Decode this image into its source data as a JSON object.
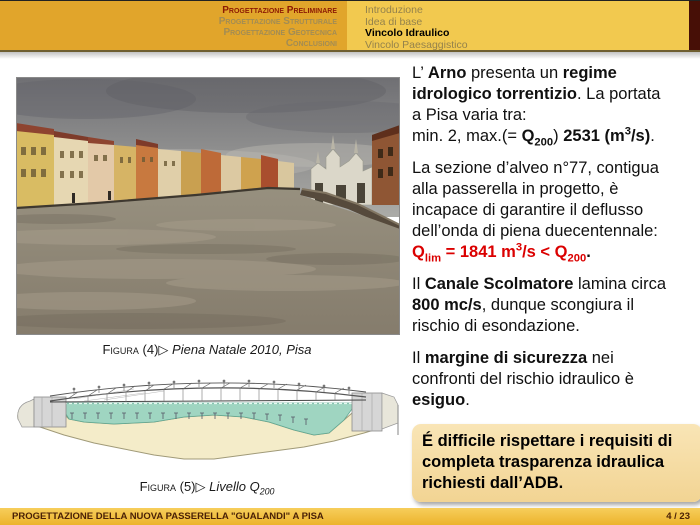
{
  "colors": {
    "red": "#DB0000",
    "gold_dark": "#E1A52B",
    "gold_light": "#F2C94F",
    "maroon_corner": "#470F06",
    "footer_text": "#4A2106",
    "water_teal": "#9FD5C1",
    "ground_beige": "#F4ECC9"
  },
  "header": {
    "sections": [
      {
        "label": "Progettazione Preliminare",
        "active": true
      },
      {
        "label": "Progettazione Strutturale",
        "active": false
      },
      {
        "label": "Progettazione Geotecnica",
        "active": false
      },
      {
        "label": "Conclusioni",
        "active": false
      }
    ],
    "subsections": [
      {
        "label": "Introduzione",
        "active": false
      },
      {
        "label": "Idea di base",
        "active": false
      },
      {
        "label": "Vincolo Idraulico",
        "active": true
      },
      {
        "label": "Vincolo Paesaggistico",
        "active": false
      }
    ]
  },
  "figures": {
    "f4": [
      {
        "t": "Figura ",
        "sc": 1
      },
      {
        "t": "(4)"
      },
      {
        "t": "▷ "
      },
      {
        "t": "Piena Natale 2010, Pisa",
        "i": 1
      }
    ],
    "f5": [
      {
        "t": "Figura ",
        "sc": 1
      },
      {
        "t": "(5)"
      },
      {
        "t": "▷ "
      },
      {
        "t": "Livello Q",
        "i": 1
      },
      {
        "t": "200",
        "v": "sub",
        "i": 1
      }
    ]
  },
  "content": {
    "paragraphs": {
      "arno": [
        {
          "t": "L’ "
        },
        {
          "t": "Arno",
          "b": 1
        },
        {
          "t": " presenta un "
        },
        {
          "t": "regime",
          "b": 1
        },
        {
          "br": 1
        },
        {
          "t": "idrologico torrentizio",
          "b": 1
        },
        {
          "t": ". La portata"
        },
        {
          "br": 1
        },
        {
          "t": "a Pisa varia tra:"
        }
      ],
      "arno_formula": [
        {
          "t": "min. 2, max.(= "
        },
        {
          "t": "Q",
          "b": 1
        },
        {
          "t": "200",
          "v": "sub",
          "b": 1
        },
        {
          "t": ") "
        },
        {
          "t": "2531",
          "b": 1
        },
        {
          "t": " "
        },
        {
          "t": "(m",
          "b": 1
        },
        {
          "t": "3",
          "v": "sup",
          "b": 1
        },
        {
          "t": "/s)",
          "b": 1
        },
        {
          "t": "."
        }
      ],
      "sezione": [
        {
          "t": "La sezione d’alveo n°77, contigua"
        },
        {
          "br": 1
        },
        {
          "t": "alla passerella in progetto, è"
        },
        {
          "br": 1
        },
        {
          "t": "incapace di garantire il deflusso"
        },
        {
          "br": 1
        },
        {
          "t": "dell’onda di piena duecentennale:"
        }
      ],
      "sezione_formula": [
        {
          "t": "Q",
          "b": 1,
          "r": 1
        },
        {
          "t": "lim",
          "v": "sub",
          "b": 1,
          "r": 1
        },
        {
          "t": " = 1841 m",
          "b": 1,
          "r": 1
        },
        {
          "t": "3",
          "v": "sup",
          "b": 1,
          "r": 1
        },
        {
          "t": "/s < Q",
          "b": 1,
          "r": 1
        },
        {
          "t": "200",
          "v": "sub",
          "b": 1,
          "r": 1
        },
        {
          "t": ".",
          "b": 1
        }
      ],
      "scolmatore": [
        {
          "t": "Il "
        },
        {
          "t": "Canale Scolmatore",
          "b": 1
        },
        {
          "t": " lamina circa"
        },
        {
          "br": 1
        },
        {
          "t": "800 mc/s",
          "b": 1
        },
        {
          "t": ", dunque scongiura il"
        },
        {
          "br": 1
        },
        {
          "t": "rischio di esondazione."
        }
      ],
      "margine": [
        {
          "t": "Il "
        },
        {
          "t": "margine di sicurezza",
          "b": 1
        },
        {
          "t": " nei"
        },
        {
          "br": 1
        },
        {
          "t": "confronti del rischio idraulico è"
        },
        {
          "br": 1
        },
        {
          "t": "esiguo",
          "b": 1
        },
        {
          "t": "."
        }
      ]
    },
    "alert": [
      {
        "t": "É difficile rispettare i requisiti di",
        "b": 1
      },
      {
        "br": 1
      },
      {
        "t": "completa trasparenza idraulica",
        "b": 1
      },
      {
        "br": 1
      },
      {
        "t": "richiesti dall’ADB.",
        "b": 1
      }
    ]
  },
  "footer": {
    "title": "PROGETTAZIONE DELLA NUOVA PASSERELLA \"GUALANDI\" A PISA",
    "page": "4 / 23"
  }
}
